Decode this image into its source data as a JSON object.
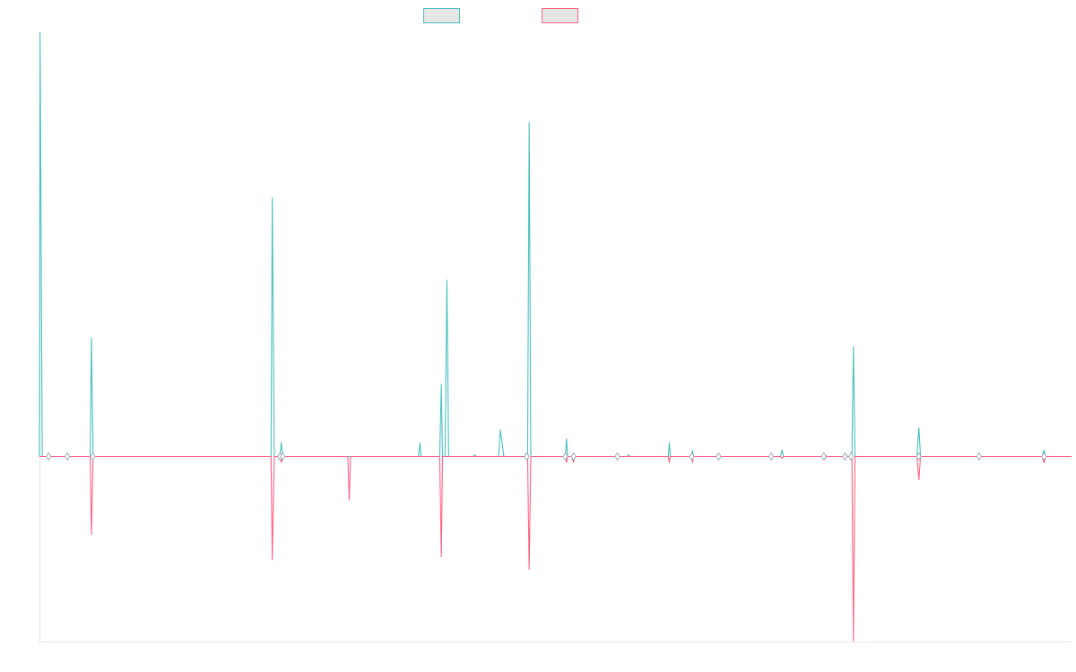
{
  "chart_data": {
    "type": "line",
    "title": "",
    "xlabel": "",
    "ylabel": "",
    "legend_position": "top-center",
    "grid": false,
    "x_range": [
      0,
      1000
    ],
    "ylim": [
      -100,
      100
    ],
    "series": [
      {
        "color": "#4bc0c0",
        "points": [
          [
            0,
            0
          ],
          [
            0.6,
            100
          ],
          [
            2.7,
            0
          ],
          [
            6,
            0
          ],
          [
            8.9,
            0
          ],
          [
            49.2,
            0
          ],
          [
            50.4,
            28
          ],
          [
            52,
            0
          ],
          [
            224.4,
            0
          ],
          [
            225.6,
            61
          ],
          [
            227.5,
            0
          ],
          [
            233,
            0
          ],
          [
            234.3,
            3.3
          ],
          [
            235.6,
            0
          ],
          [
            367.2,
            0
          ],
          [
            368.7,
            3.2
          ],
          [
            369.8,
            0
          ],
          [
            387.8,
            0
          ],
          [
            389.4,
            17
          ],
          [
            390.5,
            0
          ],
          [
            393,
            0
          ],
          [
            394.8,
            41.6
          ],
          [
            396.5,
            0
          ],
          [
            420.6,
            0
          ],
          [
            421.8,
            0.4
          ],
          [
            423.1,
            0
          ],
          [
            444.8,
            0
          ],
          [
            446.6,
            6.3
          ],
          [
            450,
            0
          ],
          [
            469.8,
            0
          ],
          [
            471.3,
            0.5
          ],
          [
            472.2,
            0
          ],
          [
            473,
            0
          ],
          [
            474.5,
            78.8
          ],
          [
            476.1,
            0
          ],
          [
            509.6,
            0
          ],
          [
            510.7,
            4.2
          ],
          [
            511.8,
            0
          ],
          [
            515.8,
            0
          ],
          [
            517.4,
            0.5
          ],
          [
            518.6,
            0
          ],
          [
            569.4,
            0
          ],
          [
            570.7,
            0.4
          ],
          [
            571.9,
            0
          ],
          [
            609.3,
            0
          ],
          [
            610.3,
            3.2
          ],
          [
            611.4,
            0
          ],
          [
            632,
            0
          ],
          [
            632.8,
            1.4
          ],
          [
            633.6,
            0
          ],
          [
            657.8,
            0
          ],
          [
            659.1,
            0.4
          ],
          [
            660.3,
            0
          ],
          [
            718,
            0
          ],
          [
            719.5,
            1.5
          ],
          [
            721,
            0
          ],
          [
            760,
            0
          ],
          [
            761.4,
            0.4
          ],
          [
            762.6,
            0
          ],
          [
            781,
            0
          ],
          [
            781.8,
            0.4
          ],
          [
            782.6,
            0
          ],
          [
            787.2,
            0
          ],
          [
            788.7,
            26
          ],
          [
            790.2,
            0
          ],
          [
            850.2,
            0
          ],
          [
            852.1,
            6.8
          ],
          [
            853.7,
            0
          ],
          [
            908.7,
            0
          ],
          [
            910.4,
            0.4
          ],
          [
            911.7,
            0
          ],
          [
            971.5,
            0
          ],
          [
            973.4,
            1.5
          ],
          [
            975,
            0
          ],
          [
            1000,
            0
          ]
        ]
      },
      {
        "color": "#ff6384",
        "points": [
          [
            0,
            0
          ],
          [
            2.7,
            0
          ],
          [
            6,
            0
          ],
          [
            8.9,
            0
          ],
          [
            49.2,
            0
          ],
          [
            50.4,
            -18.4
          ],
          [
            52,
            0
          ],
          [
            224.4,
            0
          ],
          [
            225.6,
            -24.4
          ],
          [
            227.5,
            0
          ],
          [
            233,
            0
          ],
          [
            234.3,
            -1.4
          ],
          [
            235.6,
            0
          ],
          [
            298.8,
            0
          ],
          [
            300.2,
            -10.3
          ],
          [
            301.5,
            0
          ],
          [
            387.8,
            0
          ],
          [
            389.4,
            -23.7
          ],
          [
            390.5,
            0
          ],
          [
            469.8,
            0
          ],
          [
            471.3,
            -0.4
          ],
          [
            472.2,
            0
          ],
          [
            473,
            0
          ],
          [
            474.5,
            -26.6
          ],
          [
            476.1,
            0
          ],
          [
            509.6,
            0
          ],
          [
            510.7,
            -1.4
          ],
          [
            511.8,
            0
          ],
          [
            515.8,
            0
          ],
          [
            517.4,
            -1.4
          ],
          [
            518.6,
            0
          ],
          [
            609.3,
            0
          ],
          [
            610.3,
            -1.4
          ],
          [
            611.4,
            0
          ],
          [
            632,
            0
          ],
          [
            632.8,
            -1.4
          ],
          [
            633.6,
            0
          ],
          [
            718,
            0
          ],
          [
            719.5,
            -0.4
          ],
          [
            721,
            0
          ],
          [
            760,
            0
          ],
          [
            761.4,
            -0.4
          ],
          [
            762.6,
            0
          ],
          [
            787.2,
            0
          ],
          [
            788.7,
            -43.5
          ],
          [
            790.2,
            0
          ],
          [
            850.2,
            0
          ],
          [
            852.1,
            -5.5
          ],
          [
            853.7,
            0
          ],
          [
            908.7,
            0
          ],
          [
            910.4,
            -0.4
          ],
          [
            911.7,
            0
          ],
          [
            971.5,
            0
          ],
          [
            973.4,
            -1.5
          ],
          [
            975,
            0
          ],
          [
            1000,
            0
          ]
        ]
      }
    ],
    "markers_x": [
      8.9,
      27,
      51.7,
      233,
      235.6,
      472.2,
      509.6,
      517.4,
      560,
      632,
      658,
      709,
      760,
      780.5,
      786.4,
      852,
      910.4,
      973.4
    ]
  }
}
